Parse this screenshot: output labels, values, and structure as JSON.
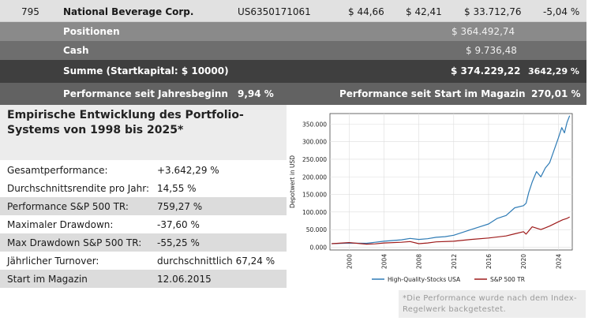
{
  "holding_row": {
    "number": "795",
    "company": "National Beverage Corp.",
    "isin": "US6350171061",
    "price_buy": "$ 44,66",
    "price_current": "$ 42,41",
    "value": "$ 33.712,76",
    "change": "-5,04 %"
  },
  "summary": {
    "positions_label": "Positionen",
    "positions_value": "$ 364.492,74",
    "cash_label": "Cash",
    "cash_value": "$ 9.736,48",
    "total_label": "Summe (Startkapital: $ 10000)",
    "total_value": "$ 374.229,22",
    "total_pct": "3642,29 %",
    "perf_year_label": "Performance seit Jahresbeginn",
    "perf_year_value": "9,94 %",
    "perf_start_label": "Performance seit Start im Magazin",
    "perf_start_value": "270,01 %"
  },
  "empirical": {
    "title": "Empirische Entwicklung des Portfolio-Systems von 1998 bis 2025*",
    "stats": [
      {
        "label": "Gesamtperformance:",
        "value": "+3.642,29 %"
      },
      {
        "label": "Durchschnittsrendite pro Jahr:",
        "value": "14,55 %"
      },
      {
        "label": "Performance S&P 500 TR:",
        "value": "759,27 %"
      },
      {
        "label": "Maximaler Drawdown:",
        "value": "-37,60 %"
      },
      {
        "label": "Max Drawdown S&P 500 TR:",
        "value": "-55,25 %"
      },
      {
        "label": "Jährlicher Turnover:",
        "value": "durchschnittlich 67,24 %"
      },
      {
        "label": "Start im Magazin",
        "value": "12.06.2015"
      }
    ]
  },
  "note": "*Die Performance wurde nach dem Index-Regelwerk backgetestet.",
  "chart_data": {
    "type": "line",
    "title": "",
    "xlabel": "",
    "ylabel": "Depotwert in USD",
    "xlim": [
      1997.8,
      2025.6
    ],
    "ylim": [
      -8000,
      380000
    ],
    "y_ticks": [
      0,
      50000,
      100000,
      150000,
      200000,
      250000,
      300000,
      350000
    ],
    "y_tick_labels": [
      "0.000",
      "50.000",
      "100.000",
      "150.000",
      "200.000",
      "250.000",
      "300.000",
      "350.000"
    ],
    "x_ticks": [
      2000,
      2004,
      2008,
      2012,
      2016,
      2020,
      2024
    ],
    "x_tick_labels": [
      "2000",
      "2004",
      "2008",
      "2012",
      "2016",
      "2020",
      "2024"
    ],
    "grid": true,
    "legend_position": "bottom",
    "series": [
      {
        "name": "High-Quality-Stocks USA",
        "color": "#2e7bb5",
        "x": [
          1998,
          2000,
          2002,
          2003,
          2004,
          2006,
          2007,
          2008,
          2009,
          2010,
          2011,
          2012,
          2013,
          2014,
          2015,
          2016,
          2017,
          2018,
          2019,
          2020,
          2020.3,
          2020.6,
          2021,
          2021.5,
          2022,
          2022.5,
          2023,
          2023.5,
          2024,
          2024.4,
          2024.7,
          2025,
          2025.3
        ],
        "values": [
          10000,
          11500,
          11000,
          14000,
          17000,
          21000,
          25000,
          22000,
          24000,
          28000,
          30000,
          34000,
          42000,
          50000,
          58000,
          66000,
          82000,
          90000,
          112000,
          118000,
          125000,
          155000,
          185000,
          215000,
          200000,
          225000,
          240000,
          275000,
          310000,
          340000,
          325000,
          355000,
          374000
        ]
      },
      {
        "name": "S&P 500 TR",
        "color": "#9e1b1b",
        "x": [
          1998,
          2000,
          2002,
          2003,
          2004,
          2006,
          2007,
          2008,
          2009,
          2010,
          2012,
          2014,
          2016,
          2018,
          2019,
          2020,
          2020.3,
          2021,
          2022,
          2022.5,
          2023,
          2024,
          2024.5,
          2025,
          2025.3
        ],
        "values": [
          10000,
          13000,
          8500,
          9500,
          12000,
          14000,
          16000,
          10000,
          12000,
          15000,
          17000,
          22000,
          26000,
          32000,
          38000,
          44000,
          37000,
          58000,
          50000,
          55000,
          60000,
          72000,
          78000,
          82000,
          86000
        ]
      }
    ]
  }
}
